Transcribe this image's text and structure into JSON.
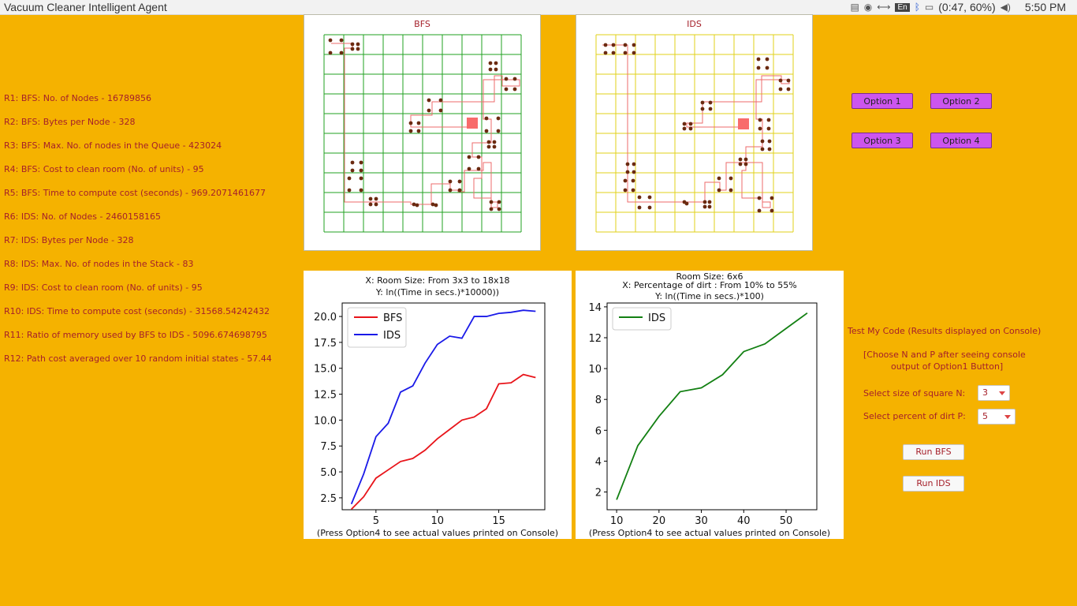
{
  "window": {
    "title": "Vacuum Cleaner Intelligent Agent"
  },
  "tray": {
    "lang": "En",
    "battery": "(0:47, 60%)",
    "clock": "5:50 PM"
  },
  "results": [
    "R1: BFS: No. of Nodes - 16789856",
    "R2: BFS: Bytes per Node - 328",
    "R3: BFS: Max. No. of nodes in the Queue - 423024",
    "R4: BFS: Cost to clean room (No. of units) - 95",
    "R5: BFS: Time to compute cost (seconds) - 969.2071461677",
    "R6: IDS: No. of Nodes - 2460158165",
    "R7: IDS: Bytes per Node - 328",
    "R8: IDS: Max. No. of nodes in the Stack - 83",
    "R9: IDS: Cost to clean room (No. of units) - 95",
    "R10: IDS: Time to compute cost (seconds) - 31568.54242432",
    "R11: Ratio of memory used by BFS to IDS - 5096.674698795",
    "R12: Path cost averaged over 10 random initial states - 57.44"
  ],
  "grids": {
    "bfs": {
      "title": "BFS",
      "color": "#22a022",
      "n": 10
    },
    "ids": {
      "title": "IDS",
      "color": "#e0d21a",
      "n": 10
    }
  },
  "options": [
    "Option 1",
    "Option 2",
    "Option 3",
    "Option 4"
  ],
  "test": {
    "heading": "Test My Code (Results displayed on Console)",
    "note_line1": "[Choose N and P after seeing console",
    "note_line2": "output of Option1 Button]",
    "size_label": "Select size of square N:",
    "size_value": "3",
    "dirt_label": "Select percent of dirt P:",
    "dirt_value": "5",
    "run_bfs": "Run BFS",
    "run_ids": "Run IDS"
  },
  "chart_data": [
    {
      "type": "line",
      "title_lines": [
        "X: Room Size: From 3x3 to 18x18",
        "Y: ln((Time in secs.)*10000))"
      ],
      "footer": "(Press Option4 to see actual values printed on Console)",
      "xlim": [
        2.25,
        18.75
      ],
      "ylim": [
        1.35,
        21.3
      ],
      "xticks": [
        5,
        10,
        15
      ],
      "yticks": [
        2.5,
        5.0,
        7.5,
        10.0,
        12.5,
        15.0,
        17.5,
        20.0
      ],
      "ytick_labels": [
        "2.5",
        "5.0",
        "7.5",
        "10.0",
        "12.5",
        "15.0",
        "17.5",
        "20.0"
      ],
      "legend_position": "top-left",
      "x": [
        3,
        4,
        5,
        6,
        7,
        8,
        9,
        10,
        11,
        12,
        13,
        14,
        15,
        16,
        17,
        18
      ],
      "series": [
        {
          "name": "BFS",
          "color": "#e8141a",
          "values": [
            1.4,
            2.6,
            4.4,
            5.2,
            6.0,
            6.3,
            7.1,
            8.2,
            9.1,
            10.0,
            10.3,
            11.1,
            13.5,
            13.6,
            14.4,
            14.1
          ]
        },
        {
          "name": "IDS",
          "color": "#1a1ae8",
          "values": [
            1.9,
            4.8,
            8.4,
            9.7,
            12.7,
            13.3,
            15.5,
            17.3,
            18.1,
            17.9,
            20.0,
            20.0,
            20.3,
            20.4,
            20.6,
            20.5
          ]
        }
      ]
    },
    {
      "type": "line",
      "title_lines": [
        "Room Size: 6x6",
        "X: Percentage of dirt : From 10% to 55%",
        "Y: ln((Time in secs.)*100)"
      ],
      "footer": "(Press Option4 to see actual values printed on Console)",
      "xlim": [
        7.75,
        57.25
      ],
      "ylim": [
        0.85,
        14.25
      ],
      "xticks": [
        10,
        20,
        30,
        40,
        50
      ],
      "yticks": [
        2,
        4,
        6,
        8,
        10,
        12,
        14
      ],
      "ytick_labels": [
        "2",
        "4",
        "6",
        "8",
        "10",
        "12",
        "14"
      ],
      "legend_position": "top-left",
      "x": [
        10,
        15,
        20,
        25,
        30,
        35,
        40,
        45,
        50,
        55
      ],
      "series": [
        {
          "name": "IDS",
          "color": "#138013",
          "values": [
            1.5,
            5.0,
            6.9,
            8.5,
            8.75,
            9.6,
            11.1,
            11.6,
            12.6,
            13.6
          ]
        }
      ]
    }
  ]
}
